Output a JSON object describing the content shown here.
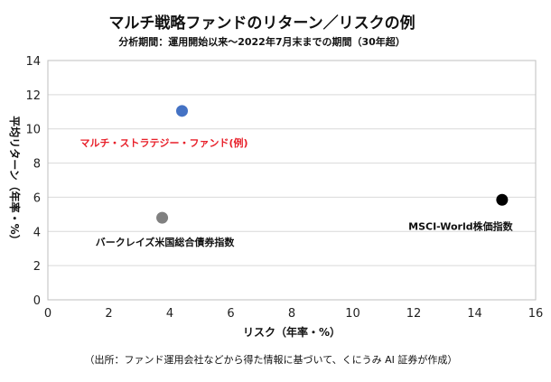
{
  "chart_data": {
    "type": "scatter",
    "title": "マルチ戦略ファンドのリターン／リスクの例",
    "subtitle": "分析期間：運用開始以来〜2022年7月末までの期間（30年超）",
    "xlabel": "リスク（年率・%）",
    "ylabel": "平均リターン（年率・%）",
    "xlim": [
      0,
      16
    ],
    "ylim": [
      0,
      14
    ],
    "xticks": [
      0,
      2,
      4,
      6,
      8,
      10,
      12,
      14,
      16
    ],
    "yticks": [
      0,
      2,
      4,
      6,
      8,
      10,
      12,
      14
    ],
    "grid": true,
    "points": [
      {
        "label": "マルチ・ストラテジー・ファンド(例)",
        "x": 4.4,
        "y": 11.05,
        "color": "#4472C4",
        "label_color": "#E8202A"
      },
      {
        "label": "バークレイズ米国総合債券指数",
        "x": 3.75,
        "y": 4.8,
        "color": "#808080",
        "label_color": "#111111"
      },
      {
        "label": "MSCI-World株価指数",
        "x": 14.9,
        "y": 5.85,
        "color": "#000000",
        "label_color": "#111111"
      }
    ],
    "source": "（出所：ファンド運用会社などから得た情報に基づいて、くにうみ AI 証券が作成）"
  }
}
